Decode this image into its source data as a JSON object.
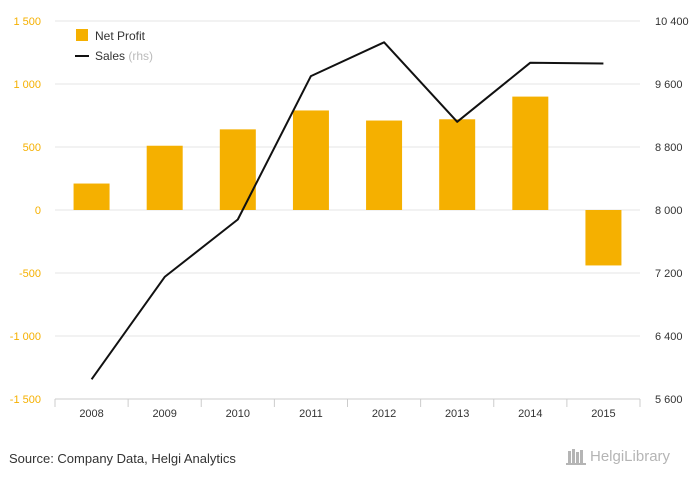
{
  "chart_data": {
    "type": "bar+line",
    "categories": [
      "2008",
      "2009",
      "2010",
      "2011",
      "2012",
      "2013",
      "2014",
      "2015"
    ],
    "series": [
      {
        "name": "Net Profit",
        "type": "bar",
        "axis": "left",
        "color": "#f5b000",
        "values": [
          210,
          510,
          640,
          790,
          710,
          720,
          900,
          -440
        ]
      },
      {
        "name": "Sales",
        "name_suffix": "(rhs)",
        "type": "line",
        "axis": "right",
        "color": "#111111",
        "values": [
          5850,
          7150,
          7880,
          9700,
          10130,
          9120,
          9870,
          9860
        ]
      }
    ],
    "y_left": {
      "min": -1500,
      "max": 1500,
      "ticks": [
        1500,
        1000,
        500,
        0,
        -500,
        -1000,
        -1500
      ],
      "tick_labels": [
        "1 500",
        "1 000",
        "500",
        "0",
        "-500",
        "-1 000",
        "-1 500"
      ]
    },
    "y_right": {
      "min": 5600,
      "max": 10400,
      "ticks": [
        10400,
        9600,
        8800,
        8000,
        7200,
        6400,
        5600
      ],
      "tick_labels": [
        "10 400",
        "9 600",
        "8 800",
        "8 000",
        "7 200",
        "6 400",
        "5 600"
      ]
    },
    "legend": "top-left",
    "grid": true
  },
  "footer": {
    "source": "Source: Company Data, Helgi Analytics",
    "logo_text": "HelgiLibrary"
  },
  "colors": {
    "left_axis": "#f5b000",
    "grid": "#e6e6e6",
    "axis_text": "#333333",
    "rhs_text": "#bbbbbb"
  }
}
